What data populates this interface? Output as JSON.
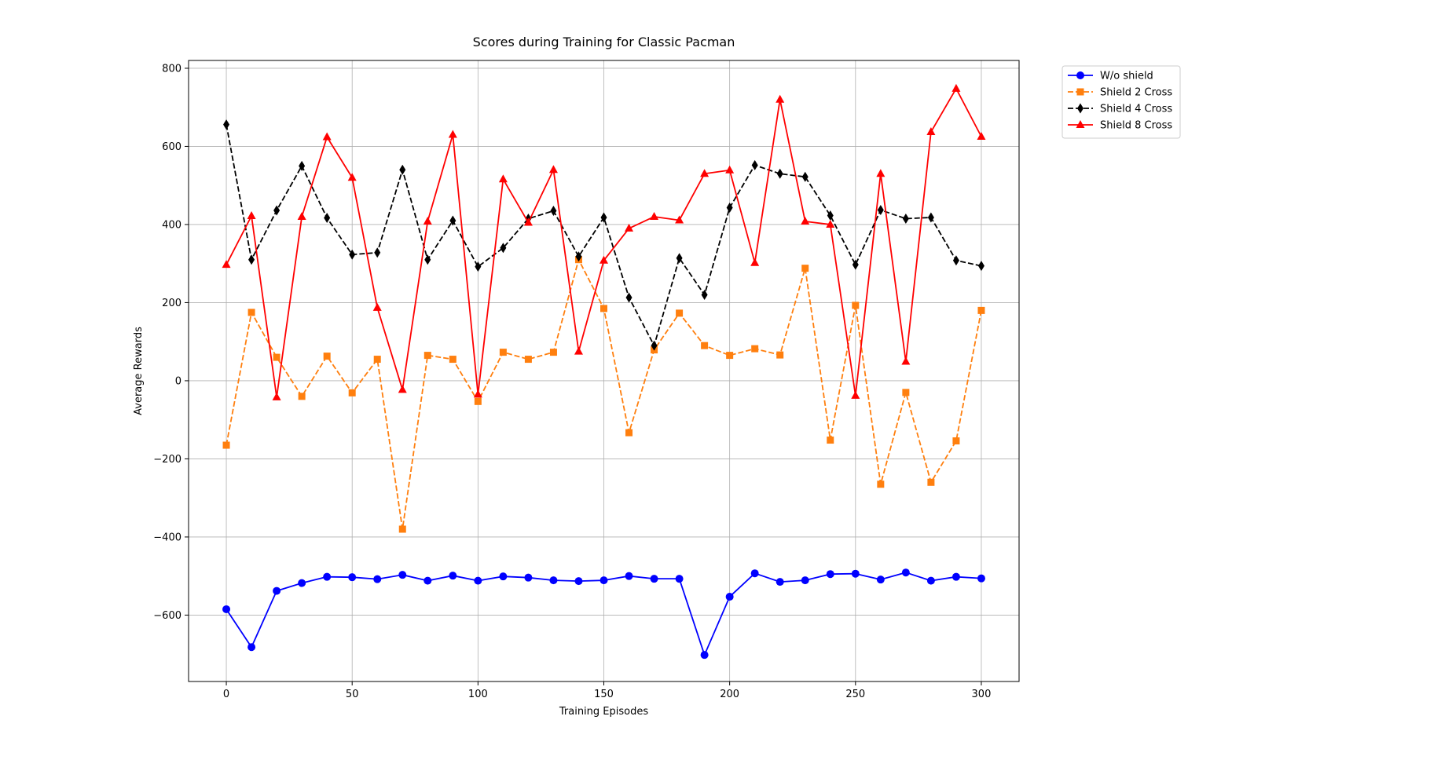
{
  "chart_data": {
    "type": "line",
    "title": "Scores during Training for Classic Pacman",
    "xlabel": "Training Episodes",
    "ylabel": "Average Rewards",
    "xlim": [
      -15,
      315
    ],
    "ylim": [
      -770,
      820
    ],
    "xticks": [
      0,
      50,
      100,
      150,
      200,
      250,
      300
    ],
    "yticks": [
      -600,
      -400,
      -200,
      0,
      200,
      400,
      600,
      800
    ],
    "grid": true,
    "legend_position": "outside-top-right",
    "x": [
      0,
      10,
      20,
      30,
      40,
      50,
      60,
      70,
      80,
      90,
      100,
      110,
      120,
      130,
      140,
      150,
      160,
      170,
      180,
      190,
      200,
      210,
      220,
      230,
      240,
      250,
      260,
      270,
      280,
      290,
      300
    ],
    "series": [
      {
        "name": "W/o shield",
        "color": "#0000ff",
        "dash": "solid",
        "marker": "circle",
        "values": [
          -585,
          -682,
          -538,
          -518,
          -502,
          -503,
          -508,
          -497,
          -512,
          -499,
          -512,
          -501,
          -504,
          -511,
          -513,
          -511,
          -500,
          -507,
          -507,
          -702,
          -553,
          -493,
          -515,
          -511,
          -495,
          -494,
          -509,
          -491,
          -512,
          -502,
          -506
        ]
      },
      {
        "name": "Shield 2 Cross",
        "color": "#ff7f0e",
        "dash": "dashed",
        "marker": "square",
        "values": [
          -165,
          175,
          60,
          -40,
          63,
          -31,
          55,
          -380,
          65,
          55,
          -53,
          73,
          55,
          73,
          310,
          185,
          -133,
          79,
          173,
          90,
          65,
          82,
          66,
          288,
          -152,
          193,
          -265,
          -30,
          -260,
          -154,
          180
        ]
      },
      {
        "name": "Shield 4 Cross",
        "color": "#000000",
        "dash": "dashed",
        "marker": "thin_diamond",
        "values": [
          656,
          310,
          436,
          550,
          417,
          323,
          328,
          540,
          310,
          410,
          292,
          340,
          415,
          435,
          318,
          418,
          213,
          90,
          314,
          220,
          443,
          552,
          530,
          522,
          423,
          297,
          437,
          415,
          418,
          308,
          294
        ]
      },
      {
        "name": "Shield 8 Cross",
        "color": "#ff0000",
        "dash": "solid",
        "marker": "triangle",
        "values": [
          297,
          422,
          -42,
          420,
          624,
          520,
          187,
          -23,
          408,
          630,
          -35,
          516,
          405,
          540,
          75,
          308,
          390,
          420,
          411,
          530,
          539,
          302,
          720,
          408,
          400,
          -38,
          530,
          49,
          637,
          748,
          625
        ]
      }
    ]
  }
}
